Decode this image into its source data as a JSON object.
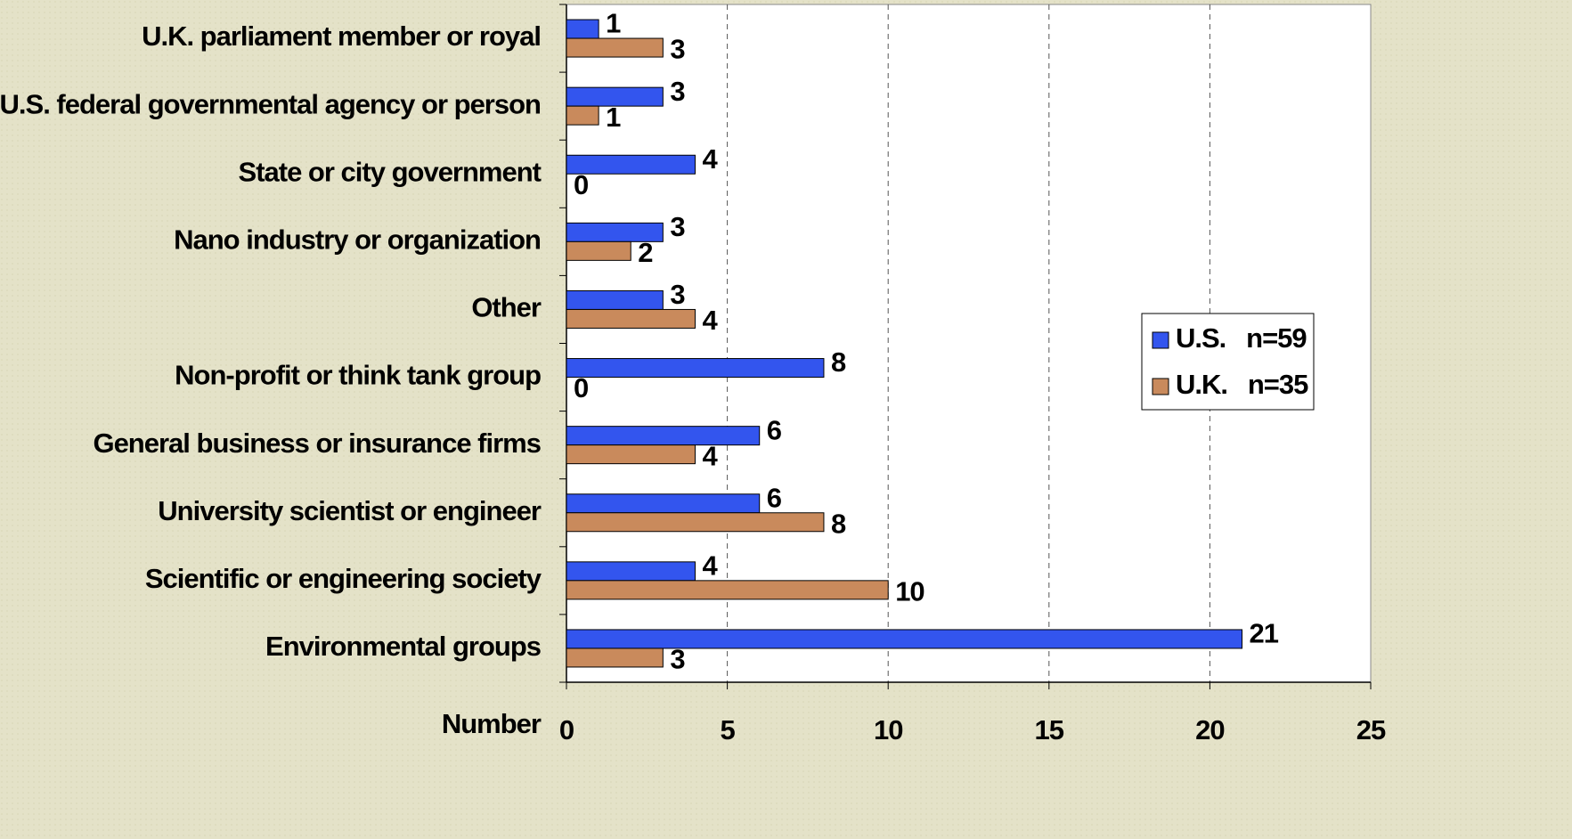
{
  "chart_data": {
    "type": "hbar",
    "categories": [
      "U.K. parliament member or royal",
      "U.S. federal governmental agency or person",
      "State or city government",
      "Nano industry or organization",
      "Other",
      "Non-profit or think tank group",
      "General business or insurance firms",
      "University scientist or engineer",
      "Scientific or engineering society",
      "Environmental groups"
    ],
    "series": [
      {
        "name": "U.S.   n=59",
        "color": "#3355ee",
        "values": [
          1,
          3,
          4,
          3,
          3,
          8,
          6,
          6,
          4,
          21
        ]
      },
      {
        "name": "U.K.   n=35",
        "color": "#c98a5c",
        "values": [
          3,
          1,
          0,
          2,
          4,
          0,
          4,
          8,
          10,
          3
        ]
      }
    ],
    "xlabel": "Number",
    "xlim": [
      0,
      25
    ],
    "xticks": [
      0,
      5,
      10,
      15,
      20,
      25
    ],
    "grid": true,
    "legend": "right"
  }
}
